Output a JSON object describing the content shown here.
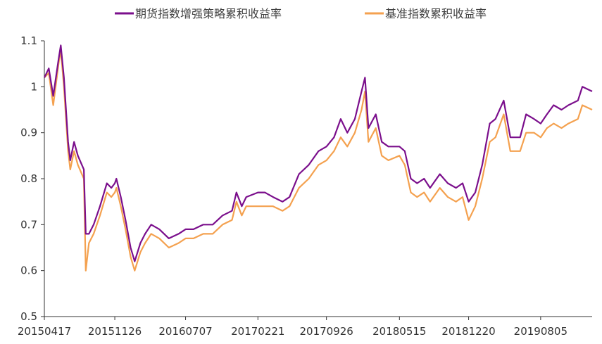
{
  "chart_data": {
    "type": "line",
    "title": "",
    "xlabel": "",
    "ylabel": "",
    "ylim": [
      0.5,
      1.1
    ],
    "yticks": [
      "0.5",
      "0.6",
      "0.7",
      "0.8",
      "0.9",
      "1",
      "1.1"
    ],
    "xticks": [
      "20150417",
      "20151126",
      "20160707",
      "20170221",
      "20170926",
      "20180515",
      "20181220",
      "20190805"
    ],
    "legend_position": "top-center",
    "grid": false,
    "colors": {
      "strategy": "#7B0F8C",
      "benchmark": "#F4A14F",
      "axis": "#333333"
    },
    "x_range": [
      "20150417",
      "20200115"
    ],
    "series": [
      {
        "name": "期货指数增强策略累积收益率",
        "color": "#7B0F8C",
        "points": [
          [
            "20150417",
            1.02
          ],
          [
            "20150501",
            1.04
          ],
          [
            "20150515",
            0.98
          ],
          [
            "20150601",
            1.06
          ],
          [
            "20150608",
            1.09
          ],
          [
            "20150618",
            1.02
          ],
          [
            "20150701",
            0.88
          ],
          [
            "20150708",
            0.84
          ],
          [
            "20150720",
            0.88
          ],
          [
            "20150801",
            0.85
          ],
          [
            "20150820",
            0.82
          ],
          [
            "20150826",
            0.68
          ],
          [
            "20150905",
            0.68
          ],
          [
            "20150920",
            0.7
          ],
          [
            "20151010",
            0.74
          ],
          [
            "20151101",
            0.79
          ],
          [
            "20151115",
            0.78
          ],
          [
            "20151126",
            0.79
          ],
          [
            "20151201",
            0.8
          ],
          [
            "20151215",
            0.76
          ],
          [
            "20151230",
            0.71
          ],
          [
            "20160115",
            0.65
          ],
          [
            "20160128",
            0.62
          ],
          [
            "20160215",
            0.66
          ],
          [
            "20160301",
            0.68
          ],
          [
            "20160320",
            0.7
          ],
          [
            "20160415",
            0.69
          ],
          [
            "20160515",
            0.67
          ],
          [
            "20160615",
            0.68
          ],
          [
            "20160707",
            0.69
          ],
          [
            "20160801",
            0.69
          ],
          [
            "20160901",
            0.7
          ],
          [
            "20161001",
            0.7
          ],
          [
            "20161101",
            0.72
          ],
          [
            "20161201",
            0.73
          ],
          [
            "20161215",
            0.77
          ],
          [
            "20170101",
            0.74
          ],
          [
            "20170115",
            0.76
          ],
          [
            "20170221",
            0.77
          ],
          [
            "20170315",
            0.77
          ],
          [
            "20170410",
            0.76
          ],
          [
            "20170510",
            0.75
          ],
          [
            "20170601",
            0.76
          ],
          [
            "20170701",
            0.81
          ],
          [
            "20170801",
            0.83
          ],
          [
            "20170901",
            0.86
          ],
          [
            "20170926",
            0.87
          ],
          [
            "20171020",
            0.89
          ],
          [
            "20171110",
            0.93
          ],
          [
            "20171201",
            0.9
          ],
          [
            "20171225",
            0.93
          ],
          [
            "20180115",
            0.99
          ],
          [
            "20180126",
            1.02
          ],
          [
            "20180206",
            0.91
          ],
          [
            "20180301",
            0.94
          ],
          [
            "20180320",
            0.88
          ],
          [
            "20180410",
            0.87
          ],
          [
            "20180515",
            0.87
          ],
          [
            "20180601",
            0.86
          ],
          [
            "20180620",
            0.8
          ],
          [
            "20180710",
            0.79
          ],
          [
            "20180801",
            0.8
          ],
          [
            "20180820",
            0.78
          ],
          [
            "20180920",
            0.81
          ],
          [
            "20181015",
            0.79
          ],
          [
            "20181110",
            0.78
          ],
          [
            "20181201",
            0.79
          ],
          [
            "20181220",
            0.75
          ],
          [
            "20190110",
            0.77
          ],
          [
            "20190201",
            0.83
          ],
          [
            "20190225",
            0.92
          ],
          [
            "20190315",
            0.93
          ],
          [
            "20190410",
            0.97
          ],
          [
            "20190501",
            0.89
          ],
          [
            "20190601",
            0.89
          ],
          [
            "20190620",
            0.94
          ],
          [
            "20190715",
            0.93
          ],
          [
            "20190805",
            0.92
          ],
          [
            "20190825",
            0.94
          ],
          [
            "20190915",
            0.96
          ],
          [
            "20191010",
            0.95
          ],
          [
            "20191101",
            0.96
          ],
          [
            "20191201",
            0.97
          ],
          [
            "20191215",
            1.0
          ],
          [
            "20200115",
            0.99
          ]
        ]
      },
      {
        "name": "基准指数累积收益率",
        "color": "#F4A14F",
        "points": [
          [
            "20150417",
            1.02
          ],
          [
            "20150501",
            1.03
          ],
          [
            "20150515",
            0.96
          ],
          [
            "20150601",
            1.05
          ],
          [
            "20150608",
            1.08
          ],
          [
            "20150618",
            1.0
          ],
          [
            "20150701",
            0.86
          ],
          [
            "20150708",
            0.82
          ],
          [
            "20150720",
            0.86
          ],
          [
            "20150801",
            0.83
          ],
          [
            "20150820",
            0.8
          ],
          [
            "20150826",
            0.6
          ],
          [
            "20150905",
            0.66
          ],
          [
            "20150920",
            0.68
          ],
          [
            "20151010",
            0.72
          ],
          [
            "20151101",
            0.77
          ],
          [
            "20151115",
            0.76
          ],
          [
            "20151126",
            0.77
          ],
          [
            "20151201",
            0.78
          ],
          [
            "20151215",
            0.74
          ],
          [
            "20151230",
            0.69
          ],
          [
            "20160115",
            0.63
          ],
          [
            "20160128",
            0.6
          ],
          [
            "20160215",
            0.64
          ],
          [
            "20160301",
            0.66
          ],
          [
            "20160320",
            0.68
          ],
          [
            "20160415",
            0.67
          ],
          [
            "20160515",
            0.65
          ],
          [
            "20160615",
            0.66
          ],
          [
            "20160707",
            0.67
          ],
          [
            "20160801",
            0.67
          ],
          [
            "20160901",
            0.68
          ],
          [
            "20161001",
            0.68
          ],
          [
            "20161101",
            0.7
          ],
          [
            "20161201",
            0.71
          ],
          [
            "20161215",
            0.75
          ],
          [
            "20170101",
            0.72
          ],
          [
            "20170115",
            0.74
          ],
          [
            "20170221",
            0.74
          ],
          [
            "20170315",
            0.74
          ],
          [
            "20170410",
            0.74
          ],
          [
            "20170510",
            0.73
          ],
          [
            "20170601",
            0.74
          ],
          [
            "20170701",
            0.78
          ],
          [
            "20170801",
            0.8
          ],
          [
            "20170901",
            0.83
          ],
          [
            "20170926",
            0.84
          ],
          [
            "20171020",
            0.86
          ],
          [
            "20171110",
            0.89
          ],
          [
            "20171201",
            0.87
          ],
          [
            "20171225",
            0.9
          ],
          [
            "20180115",
            0.95
          ],
          [
            "20180126",
            0.99
          ],
          [
            "20180206",
            0.88
          ],
          [
            "20180301",
            0.91
          ],
          [
            "20180320",
            0.85
          ],
          [
            "20180410",
            0.84
          ],
          [
            "20180515",
            0.85
          ],
          [
            "20180601",
            0.83
          ],
          [
            "20180620",
            0.77
          ],
          [
            "20180710",
            0.76
          ],
          [
            "20180801",
            0.77
          ],
          [
            "20180820",
            0.75
          ],
          [
            "20180920",
            0.78
          ],
          [
            "20181015",
            0.76
          ],
          [
            "20181110",
            0.75
          ],
          [
            "20181201",
            0.76
          ],
          [
            "20181220",
            0.71
          ],
          [
            "20190110",
            0.74
          ],
          [
            "20190201",
            0.8
          ],
          [
            "20190225",
            0.88
          ],
          [
            "20190315",
            0.89
          ],
          [
            "20190410",
            0.94
          ],
          [
            "20190501",
            0.86
          ],
          [
            "20190601",
            0.86
          ],
          [
            "20190620",
            0.9
          ],
          [
            "20190715",
            0.9
          ],
          [
            "20190805",
            0.89
          ],
          [
            "20190825",
            0.91
          ],
          [
            "20190915",
            0.92
          ],
          [
            "20191010",
            0.91
          ],
          [
            "20191101",
            0.92
          ],
          [
            "20191201",
            0.93
          ],
          [
            "20191215",
            0.96
          ],
          [
            "20200115",
            0.95
          ]
        ]
      }
    ]
  }
}
